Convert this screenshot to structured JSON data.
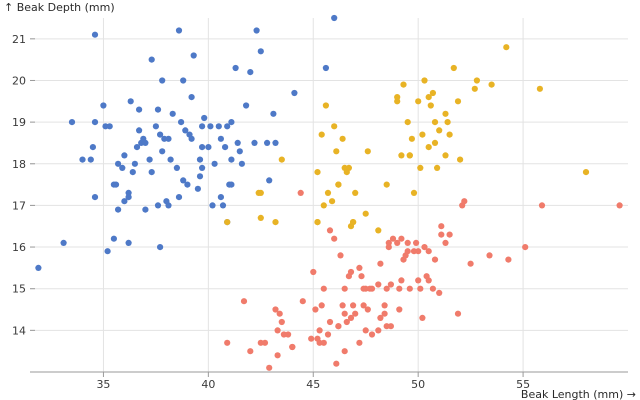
{
  "chart_data": {
    "type": "scatter",
    "xlabel": "Beak Length (mm) →",
    "ylabel": "↑ Beak Depth (mm)",
    "xlim": [
      31.5,
      60
    ],
    "ylim": [
      13,
      21.5
    ],
    "xticks": [
      35,
      40,
      45,
      50,
      55
    ],
    "yticks": [
      14,
      15,
      16,
      17,
      18,
      19,
      20,
      21
    ],
    "grid": true,
    "legend": "none",
    "series": [
      {
        "color": "#4e79c7",
        "points": [
          [
            31.9,
            15.5
          ],
          [
            33.1,
            16.1
          ],
          [
            33.5,
            19.0
          ],
          [
            34.0,
            18.1
          ],
          [
            34.4,
            18.1
          ],
          [
            34.5,
            18.4
          ],
          [
            34.6,
            17.2
          ],
          [
            34.6,
            21.1
          ],
          [
            35.0,
            19.4
          ],
          [
            35.1,
            18.9
          ],
          [
            35.2,
            15.9
          ],
          [
            35.3,
            18.9
          ],
          [
            35.5,
            16.2
          ],
          [
            35.5,
            17.5
          ],
          [
            35.6,
            17.5
          ],
          [
            35.7,
            16.9
          ],
          [
            35.9,
            17.9
          ],
          [
            36.0,
            17.1
          ],
          [
            36.0,
            18.2
          ],
          [
            36.2,
            16.1
          ],
          [
            36.2,
            17.2
          ],
          [
            36.3,
            19.5
          ],
          [
            36.4,
            17.8
          ],
          [
            36.5,
            18.0
          ],
          [
            36.6,
            18.4
          ],
          [
            36.7,
            19.3
          ],
          [
            36.8,
            18.5
          ],
          [
            36.9,
            18.6
          ],
          [
            37.0,
            16.9
          ],
          [
            37.2,
            18.1
          ],
          [
            37.3,
            17.8
          ],
          [
            37.5,
            18.9
          ],
          [
            37.6,
            17.0
          ],
          [
            37.7,
            18.7
          ],
          [
            37.8,
            18.3
          ],
          [
            37.9,
            18.6
          ],
          [
            38.0,
            17.1
          ],
          [
            38.1,
            18.6
          ],
          [
            38.2,
            18.1
          ],
          [
            38.3,
            19.2
          ],
          [
            38.5,
            17.9
          ],
          [
            38.6,
            17.2
          ],
          [
            38.7,
            19.0
          ],
          [
            38.8,
            17.6
          ],
          [
            38.9,
            18.8
          ],
          [
            39.0,
            17.5
          ],
          [
            39.1,
            18.7
          ],
          [
            39.2,
            19.6
          ],
          [
            39.3,
            20.6
          ],
          [
            39.5,
            17.4
          ],
          [
            39.6,
            17.7
          ],
          [
            39.7,
            18.4
          ],
          [
            39.8,
            19.1
          ],
          [
            40.0,
            18.4
          ],
          [
            40.1,
            18.9
          ],
          [
            40.2,
            17.0
          ],
          [
            40.3,
            18.0
          ],
          [
            40.5,
            18.9
          ],
          [
            40.6,
            17.2
          ],
          [
            40.7,
            17.0
          ],
          [
            40.8,
            18.4
          ],
          [
            40.9,
            16.6
          ],
          [
            41.0,
            17.5
          ],
          [
            41.1,
            18.1
          ],
          [
            41.3,
            20.3
          ],
          [
            41.4,
            18.5
          ],
          [
            41.5,
            18.3
          ],
          [
            41.6,
            18.0
          ],
          [
            41.8,
            19.4
          ],
          [
            42.0,
            20.2
          ],
          [
            42.2,
            18.5
          ],
          [
            42.3,
            21.2
          ],
          [
            42.5,
            20.7
          ],
          [
            42.8,
            18.5
          ],
          [
            42.9,
            17.6
          ],
          [
            43.1,
            19.2
          ],
          [
            43.2,
            18.5
          ],
          [
            44.1,
            19.7
          ],
          [
            45.6,
            20.3
          ],
          [
            46.0,
            21.5
          ],
          [
            37.8,
            20.0
          ],
          [
            38.1,
            17.0
          ],
          [
            39.7,
            17.9
          ],
          [
            36.7,
            18.8
          ],
          [
            39.2,
            18.6
          ],
          [
            37.0,
            18.5
          ],
          [
            40.9,
            18.9
          ],
          [
            39.6,
            18.1
          ],
          [
            38.8,
            20.0
          ],
          [
            35.7,
            18.0
          ],
          [
            41.1,
            19.0
          ],
          [
            36.2,
            17.3
          ],
          [
            37.3,
            20.5
          ],
          [
            40.6,
            18.6
          ],
          [
            34.6,
            19.0
          ],
          [
            38.6,
            21.2
          ],
          [
            37.6,
            19.3
          ],
          [
            39.7,
            18.9
          ],
          [
            37.7,
            16.0
          ],
          [
            41.1,
            17.5
          ]
        ]
      },
      {
        "color": "#e8b325",
        "points": [
          [
            40.9,
            16.6
          ],
          [
            42.4,
            17.3
          ],
          [
            42.5,
            16.7
          ],
          [
            42.5,
            17.3
          ],
          [
            43.2,
            16.6
          ],
          [
            43.5,
            18.1
          ],
          [
            45.2,
            16.6
          ],
          [
            45.2,
            17.8
          ],
          [
            45.4,
            18.7
          ],
          [
            45.5,
            17.0
          ],
          [
            45.6,
            19.4
          ],
          [
            45.7,
            17.3
          ],
          [
            45.9,
            17.1
          ],
          [
            46.0,
            18.9
          ],
          [
            46.1,
            18.3
          ],
          [
            46.2,
            17.5
          ],
          [
            46.4,
            18.6
          ],
          [
            46.5,
            17.9
          ],
          [
            46.6,
            17.8
          ],
          [
            46.7,
            17.9
          ],
          [
            46.8,
            16.5
          ],
          [
            46.9,
            16.6
          ],
          [
            47.0,
            17.3
          ],
          [
            47.5,
            16.8
          ],
          [
            47.6,
            18.3
          ],
          [
            48.1,
            16.4
          ],
          [
            48.5,
            17.5
          ],
          [
            49.0,
            19.5
          ],
          [
            49.2,
            18.2
          ],
          [
            49.3,
            19.9
          ],
          [
            49.5,
            19.0
          ],
          [
            49.6,
            18.2
          ],
          [
            49.7,
            18.6
          ],
          [
            49.8,
            17.3
          ],
          [
            50.0,
            19.5
          ],
          [
            50.1,
            17.9
          ],
          [
            50.2,
            18.7
          ],
          [
            50.3,
            20.0
          ],
          [
            50.5,
            19.6
          ],
          [
            50.6,
            19.4
          ],
          [
            50.7,
            19.7
          ],
          [
            50.8,
            18.5
          ],
          [
            50.9,
            17.9
          ],
          [
            51.0,
            18.8
          ],
          [
            51.3,
            19.2
          ],
          [
            51.4,
            19.0
          ],
          [
            51.5,
            18.7
          ],
          [
            51.7,
            20.3
          ],
          [
            51.9,
            19.5
          ],
          [
            52.0,
            18.1
          ],
          [
            52.7,
            19.8
          ],
          [
            52.8,
            20.0
          ],
          [
            53.5,
            19.9
          ],
          [
            54.2,
            20.8
          ],
          [
            55.8,
            19.8
          ],
          [
            58.0,
            17.8
          ],
          [
            49.0,
            19.6
          ],
          [
            50.5,
            18.4
          ],
          [
            51.3,
            18.2
          ],
          [
            46.9,
            16.6
          ],
          [
            50.8,
            19.0
          ],
          [
            46.2,
            17.5
          ],
          [
            49.6,
            18.2
          ],
          [
            45.2,
            16.6
          ]
        ]
      },
      {
        "color": "#f07b6b",
        "points": [
          [
            40.9,
            13.7
          ],
          [
            41.7,
            14.7
          ],
          [
            42.0,
            13.5
          ],
          [
            42.5,
            13.7
          ],
          [
            42.7,
            13.7
          ],
          [
            42.9,
            13.1
          ],
          [
            43.2,
            14.5
          ],
          [
            43.3,
            13.4
          ],
          [
            43.4,
            14.4
          ],
          [
            43.5,
            14.2
          ],
          [
            43.6,
            13.9
          ],
          [
            43.8,
            13.9
          ],
          [
            44.0,
            13.6
          ],
          [
            44.4,
            17.3
          ],
          [
            44.5,
            14.7
          ],
          [
            44.9,
            13.8
          ],
          [
            45.0,
            15.4
          ],
          [
            45.1,
            14.5
          ],
          [
            45.2,
            13.8
          ],
          [
            45.3,
            13.7
          ],
          [
            45.4,
            14.6
          ],
          [
            45.5,
            13.7
          ],
          [
            45.5,
            15.0
          ],
          [
            45.7,
            13.9
          ],
          [
            45.8,
            14.2
          ],
          [
            46.1,
            13.2
          ],
          [
            46.2,
            14.1
          ],
          [
            46.3,
            15.8
          ],
          [
            46.4,
            14.6
          ],
          [
            46.5,
            13.5
          ],
          [
            46.5,
            14.4
          ],
          [
            46.6,
            14.2
          ],
          [
            46.7,
            15.3
          ],
          [
            46.8,
            14.3
          ],
          [
            46.8,
            15.4
          ],
          [
            46.9,
            14.6
          ],
          [
            47.0,
            14.4
          ],
          [
            47.2,
            13.7
          ],
          [
            47.2,
            15.5
          ],
          [
            47.3,
            15.3
          ],
          [
            47.4,
            14.6
          ],
          [
            47.5,
            14.0
          ],
          [
            47.5,
            15.0
          ],
          [
            47.6,
            14.5
          ],
          [
            47.7,
            15.0
          ],
          [
            47.8,
            15.0
          ],
          [
            48.1,
            15.1
          ],
          [
            48.2,
            14.3
          ],
          [
            48.2,
            15.6
          ],
          [
            48.4,
            14.4
          ],
          [
            48.4,
            14.6
          ],
          [
            48.5,
            14.1
          ],
          [
            48.5,
            15.0
          ],
          [
            48.6,
            16.0
          ],
          [
            48.7,
            14.1
          ],
          [
            48.7,
            15.1
          ],
          [
            48.8,
            16.2
          ],
          [
            49.0,
            16.1
          ],
          [
            49.1,
            14.5
          ],
          [
            49.1,
            15.0
          ],
          [
            49.2,
            15.2
          ],
          [
            49.3,
            15.7
          ],
          [
            49.4,
            15.8
          ],
          [
            49.5,
            16.1
          ],
          [
            49.6,
            15.0
          ],
          [
            49.8,
            15.9
          ],
          [
            49.9,
            16.1
          ],
          [
            50.0,
            15.2
          ],
          [
            50.0,
            15.9
          ],
          [
            50.1,
            15.0
          ],
          [
            50.2,
            14.3
          ],
          [
            50.4,
            15.3
          ],
          [
            50.5,
            15.2
          ],
          [
            50.5,
            15.9
          ],
          [
            50.7,
            15.0
          ],
          [
            50.8,
            15.7
          ],
          [
            51.1,
            16.3
          ],
          [
            51.1,
            16.5
          ],
          [
            51.3,
            16.1
          ],
          [
            51.5,
            16.3
          ],
          [
            52.1,
            17.0
          ],
          [
            52.2,
            17.1
          ],
          [
            52.5,
            15.6
          ],
          [
            53.4,
            15.8
          ],
          [
            54.3,
            15.7
          ],
          [
            55.1,
            16.0
          ],
          [
            55.9,
            17.0
          ],
          [
            59.6,
            17.0
          ],
          [
            46.5,
            15.0
          ],
          [
            45.3,
            14.0
          ],
          [
            47.8,
            13.9
          ],
          [
            46.0,
            16.2
          ],
          [
            49.5,
            15.9
          ],
          [
            44.0,
            13.6
          ],
          [
            48.1,
            14.0
          ],
          [
            46.2,
            14.1
          ],
          [
            43.3,
            14.0
          ],
          [
            51.0,
            14.9
          ],
          [
            50.3,
            16.0
          ],
          [
            45.8,
            16.4
          ],
          [
            49.2,
            16.2
          ],
          [
            51.9,
            14.4
          ],
          [
            47.4,
            15.0
          ],
          [
            48.6,
            16.1
          ]
        ]
      }
    ]
  }
}
